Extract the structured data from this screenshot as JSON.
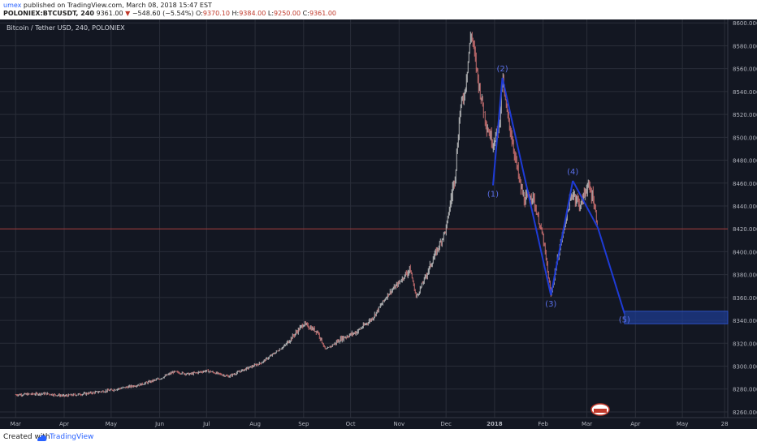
{
  "header": {
    "author": "umex",
    "published": " published on TradingView.com, March 08, 2018 15:47 EST",
    "symbol": "POLONIEX:BTCUSDT, 240",
    "last": "9361.00",
    "change_arrow": "▼",
    "change": "−548.60 (−5.54%)",
    "open_label": "O:",
    "open": "9370.10",
    "high_label": "H:",
    "high": "9384.00",
    "low_label": "L:",
    "low": "9250.00",
    "close_label": "C:",
    "close": "9361.00"
  },
  "footer": {
    "created_with": "Created with",
    "brand": "TradingView"
  },
  "colors": {
    "background": "#131722",
    "grid": "#2a2e39",
    "candle_up": "#d6d6d6",
    "candle_down": "#e37a7a",
    "wave": "#1e3bd6",
    "wave_label": "#5a6fe8",
    "target_zone": "#1e3b8f",
    "price_line": "#a33a3a"
  },
  "chart_data": {
    "type": "line",
    "title": "Bitcoin / Tether USD, 240, POLONIEX",
    "x_tick_labels": [
      "Mar",
      "Apr",
      "May",
      "Jun",
      "Jul",
      "Aug",
      "Sep",
      "Oct",
      "Nov",
      "Dec",
      "2018",
      "Feb",
      "Mar",
      "Apr",
      "May",
      "28"
    ],
    "y_tick_labels": [
      "8600.0000",
      "8580.0000",
      "8560.0000",
      "8540.0000",
      "8520.0000",
      "8500.0000",
      "8480.0000",
      "8460.0000",
      "8440.0000",
      "8420.0000",
      "8400.0000",
      "8380.0000",
      "8360.0000",
      "8340.0000",
      "8320.0000",
      "8300.0000",
      "8280.0000",
      "8260.0000"
    ],
    "ylim": [
      8255,
      8603
    ],
    "log_scale": true,
    "grid": true,
    "price_series": {
      "name": "",
      "points": [
        [
          "2017-03-01",
          8275
        ],
        [
          "2017-03-20",
          8276
        ],
        [
          "2017-04-01",
          8274
        ],
        [
          "2017-04-15",
          8276
        ],
        [
          "2017-05-01",
          8279
        ],
        [
          "2017-05-20",
          8284
        ],
        [
          "2017-06-01",
          8289
        ],
        [
          "2017-06-10",
          8295
        ],
        [
          "2017-06-20",
          8293
        ],
        [
          "2017-07-01",
          8296
        ],
        [
          "2017-07-15",
          8291
        ],
        [
          "2017-07-25",
          8297
        ],
        [
          "2017-08-05",
          8303
        ],
        [
          "2017-08-20",
          8318
        ],
        [
          "2017-09-01",
          8337
        ],
        [
          "2017-09-10",
          8330
        ],
        [
          "2017-09-15",
          8314
        ],
        [
          "2017-09-25",
          8324
        ],
        [
          "2017-10-05",
          8330
        ],
        [
          "2017-10-15",
          8342
        ],
        [
          "2017-10-25",
          8363
        ],
        [
          "2017-11-01",
          8373
        ],
        [
          "2017-11-08",
          8385
        ],
        [
          "2017-11-12",
          8360
        ],
        [
          "2017-11-20",
          8385
        ],
        [
          "2017-11-28",
          8410
        ],
        [
          "2017-12-01",
          8420
        ],
        [
          "2017-12-07",
          8470
        ],
        [
          "2017-12-10",
          8525
        ],
        [
          "2017-12-13",
          8540
        ],
        [
          "2017-12-17",
          8592
        ],
        [
          "2017-12-19",
          8575
        ],
        [
          "2017-12-22",
          8545
        ],
        [
          "2017-12-27",
          8510
        ],
        [
          "2017-12-31",
          8495
        ],
        [
          "2018-01-04",
          8510
        ],
        [
          "2018-01-06",
          8552
        ],
        [
          "2018-01-09",
          8520
        ],
        [
          "2018-01-12",
          8500
        ],
        [
          "2018-01-17",
          8460
        ],
        [
          "2018-01-20",
          8445
        ],
        [
          "2018-01-25",
          8450
        ],
        [
          "2018-02-01",
          8412
        ],
        [
          "2018-02-06",
          8362
        ],
        [
          "2018-02-10",
          8392
        ],
        [
          "2018-02-16",
          8432
        ],
        [
          "2018-02-20",
          8452
        ],
        [
          "2018-02-25",
          8440
        ],
        [
          "2018-03-01",
          8458
        ],
        [
          "2018-03-05",
          8448
        ],
        [
          "2018-03-08",
          8421
        ]
      ]
    },
    "wave_points": [
      {
        "label": "(1)",
        "x": "2017-12-31",
        "y": 8458
      },
      {
        "label": "(2)",
        "x": "2018-01-06",
        "y": 8552
      },
      {
        "label": "(3)",
        "x": "2018-02-06",
        "y": 8362
      },
      {
        "label": "(4)",
        "x": "2018-02-20",
        "y": 8462
      },
      {
        "label": "(5)",
        "x": "2018-03-25",
        "y": 8346
      }
    ],
    "wave_path": [
      {
        "x": "2017-12-31",
        "y": 8458
      },
      {
        "x": "2018-01-06",
        "y": 8552
      },
      {
        "x": "2018-02-06",
        "y": 8362
      },
      {
        "x": "2018-02-20",
        "y": 8462
      },
      {
        "x": "2018-03-08",
        "y": 8421
      },
      {
        "x": "2018-03-25",
        "y": 8346
      }
    ],
    "target_zone": {
      "x_from": "2018-03-25",
      "x_to": "2018-05-30",
      "y_from": 8337,
      "y_to": 8348
    },
    "current_price_line": 8420
  }
}
